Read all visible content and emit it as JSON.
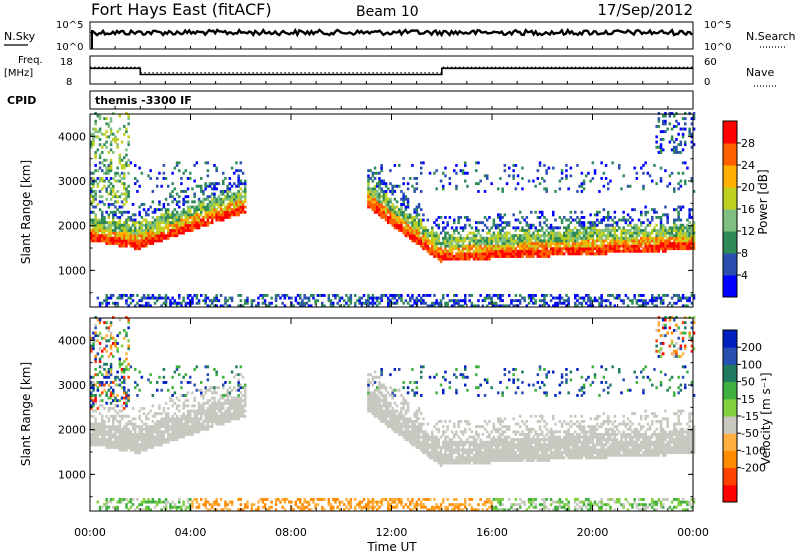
{
  "header": {
    "station": "Fort Hays East (fitACF)",
    "beam": "Beam 10",
    "date": "17/Sep/2012"
  },
  "panels": {
    "nsky_label": "N.Sky",
    "nsearch_label": "N.Search",
    "noise_ticks": [
      "10^5",
      "10^0"
    ],
    "freq_label": "Freq.",
    "freq_unit": "[MHz]",
    "freq_ticks": [
      "18",
      "8"
    ],
    "nave_label": "Nave",
    "nave_ticks": [
      "60",
      "0"
    ],
    "cpid_label": "CPID",
    "cpid_value": "themis -3300 IF"
  },
  "colors": {
    "power": [
      "#0000ff",
      "#2a4fb0",
      "#2e8b57",
      "#7fbf7f",
      "#c0d020",
      "#ffb000",
      "#ff6000",
      "#ff0000"
    ],
    "velocity": [
      "#ff0000",
      "#ff4000",
      "#ff8c00",
      "#ffb040",
      "#c8c8c0",
      "#80d040",
      "#40b040",
      "#1f7a60",
      "#2850b0",
      "#0020c0"
    ],
    "ground_scatter": "#c8c8c0"
  },
  "chart_data": [
    {
      "type": "heatmap",
      "name": "power",
      "ylabel": "Slant Range [km]",
      "colorbar_label": "Power [dB]",
      "colorbar_ticks": [
        "28",
        "24",
        "20",
        "16",
        "12",
        "8",
        "4"
      ],
      "colorbar_range": [
        0,
        32
      ],
      "x_range_hours": [
        0,
        24
      ],
      "y_range_km": [
        180,
        4500
      ],
      "y_ticks": [
        "1000",
        "2000",
        "3000",
        "4000"
      ]
    },
    {
      "type": "heatmap",
      "name": "velocity",
      "ylabel": "Slant Range [km]",
      "colorbar_label": "Velocity [m s⁻¹]",
      "colorbar_ticks": [
        "200",
        "100",
        "50",
        "15",
        "-15",
        "-50",
        "-100",
        "-200"
      ],
      "x_range_hours": [
        0,
        24
      ],
      "y_range_km": [
        180,
        4500
      ],
      "y_ticks": [
        "1000",
        "2000",
        "3000",
        "4000"
      ],
      "xlabel": "Time UT",
      "x_ticks": [
        "00:00",
        "04:00",
        "08:00",
        "12:00",
        "16:00",
        "20:00",
        "00:00"
      ]
    },
    {
      "type": "line",
      "name": "frequency",
      "ylim": [
        8,
        18
      ],
      "x": [
        0,
        2.0,
        2.0,
        14.0,
        14.0,
        24
      ],
      "y": [
        13.6,
        13.6,
        11.4,
        11.4,
        13.6,
        13.6
      ]
    },
    {
      "type": "line",
      "name": "nave",
      "ylim": [
        0,
        60
      ],
      "x": [
        0,
        2.0,
        2.0,
        14.0,
        14.0,
        24
      ],
      "y": [
        36,
        36,
        24,
        24,
        36,
        36
      ]
    }
  ]
}
